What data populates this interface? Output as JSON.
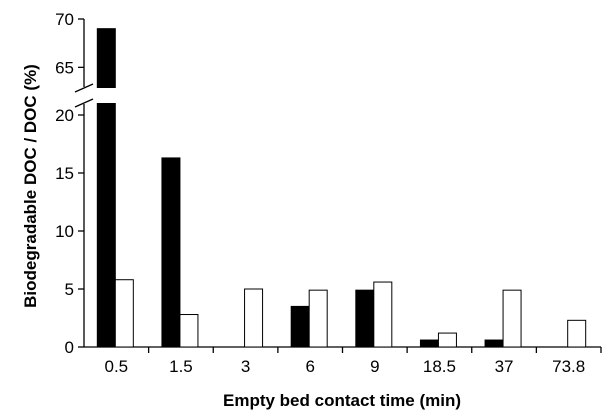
{
  "chart_data": {
    "type": "bar",
    "xlabel": "Empty bed contact time (min)",
    "ylabel": "Biodegradable DOC / DOC (%)",
    "categories": [
      "0.5",
      "1.5",
      "3",
      "6",
      "9",
      "18.5",
      "37",
      "73.8"
    ],
    "series": [
      {
        "color": "#000000",
        "values": [
          69,
          16.3,
          0,
          3.5,
          4.9,
          0.6,
          0.6,
          0
        ]
      },
      {
        "color": "#ffffff",
        "values": [
          5.8,
          2.8,
          5,
          4.9,
          5.6,
          1.2,
          4.9,
          2.3
        ]
      }
    ],
    "y_axis_lower": {
      "range": [
        0,
        20
      ],
      "ticks": [
        0,
        5,
        10,
        15,
        20
      ]
    },
    "y_axis_upper": {
      "range": [
        64,
        70
      ],
      "ticks": [
        65,
        70
      ]
    },
    "axis_break": true,
    "grid": false,
    "legend": "none"
  }
}
